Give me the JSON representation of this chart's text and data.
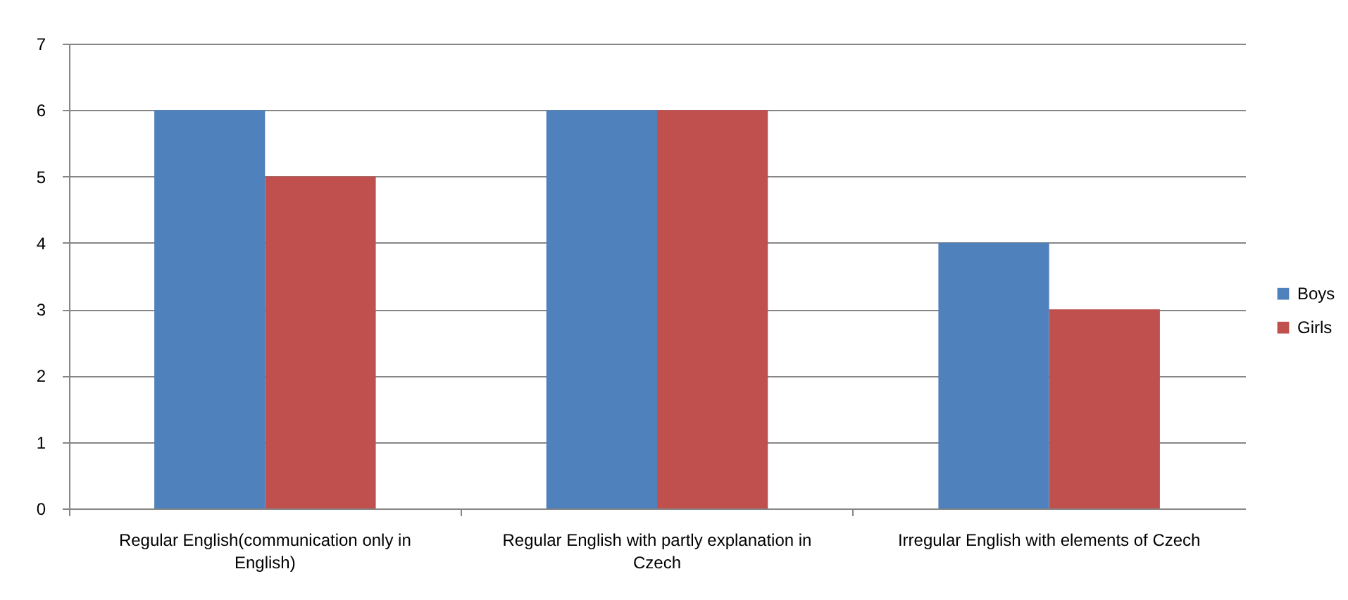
{
  "chart_data": {
    "type": "bar",
    "categories": [
      "Regular English(communication only in English)",
      "Regular English with partly explanation in Czech",
      "Irregular English with elements of Czech"
    ],
    "series": [
      {
        "name": "Boys",
        "color": "#4f81bd",
        "values": [
          6,
          6,
          4
        ]
      },
      {
        "name": "Girls",
        "color": "#c0504d",
        "values": [
          5,
          6,
          3
        ]
      }
    ],
    "ylim": [
      0,
      7
    ],
    "yticks": [
      0,
      1,
      2,
      3,
      4,
      5,
      6,
      7
    ],
    "grid": "y",
    "legend": "right"
  }
}
